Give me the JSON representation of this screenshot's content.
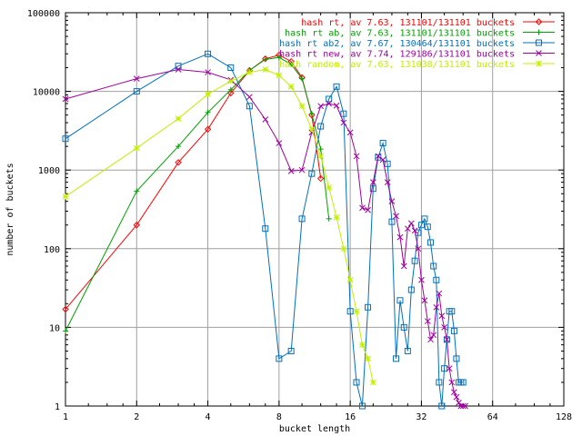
{
  "chart_data": {
    "type": "line",
    "xlabel": "bucket length",
    "ylabel": "number of buckets",
    "x_scale": "log2",
    "y_scale": "log10",
    "xlim": [
      1,
      128
    ],
    "ylim": [
      1,
      100000
    ],
    "x_ticks": [
      1,
      2,
      4,
      8,
      16,
      32,
      64,
      128
    ],
    "x_tick_labels": [
      "1",
      "2",
      "4",
      "8",
      "16",
      "32",
      "64",
      "128"
    ],
    "y_ticks": [
      1,
      10,
      100,
      1000,
      10000,
      100000
    ],
    "y_tick_labels": [
      "1",
      "10",
      "100",
      "1000",
      "10000",
      "100000"
    ],
    "grid": true,
    "legend_position": "top-right",
    "series": [
      {
        "name": "hash rt, av 7.63, 131101/131101 buckets",
        "color": "#ff0000",
        "marker": "diamond",
        "points": [
          [
            1,
            17
          ],
          [
            2,
            200
          ],
          [
            3,
            1250
          ],
          [
            4,
            3300
          ],
          [
            5,
            9500
          ],
          [
            6,
            18500
          ],
          [
            7,
            26000
          ],
          [
            8,
            29000
          ],
          [
            9,
            24000
          ],
          [
            10,
            15000
          ],
          [
            11,
            5000
          ],
          [
            12,
            780
          ]
        ]
      },
      {
        "name": "hash rt ab, av 7.63, 131101/131101 buckets",
        "color": "#00a000",
        "marker": "plus",
        "points": [
          [
            1,
            9
          ],
          [
            2,
            540
          ],
          [
            3,
            2000
          ],
          [
            4,
            5400
          ],
          [
            5,
            10500
          ],
          [
            6,
            18500
          ],
          [
            7,
            25500
          ],
          [
            8,
            27000
          ],
          [
            9,
            22000
          ],
          [
            10,
            14500
          ],
          [
            11,
            5200
          ],
          [
            12,
            1850
          ],
          [
            13,
            240
          ]
        ]
      },
      {
        "name": "hash rt ab2, av 7.67, 130464/131101 buckets",
        "color": "#0070c0",
        "marker": "square",
        "points": [
          [
            1,
            2500
          ],
          [
            2,
            10000
          ],
          [
            3,
            21000
          ],
          [
            4,
            30000
          ],
          [
            5,
            20000
          ],
          [
            6,
            6500
          ],
          [
            7,
            180
          ],
          [
            8,
            4
          ],
          [
            9,
            5
          ],
          [
            10,
            240
          ],
          [
            11,
            900
          ],
          [
            12,
            3600
          ],
          [
            13,
            8000
          ],
          [
            14,
            11500
          ],
          [
            15,
            5200
          ],
          [
            16,
            16
          ],
          [
            17,
            2
          ],
          [
            18,
            1
          ],
          [
            19,
            18
          ],
          [
            20,
            580
          ],
          [
            21,
            1450
          ],
          [
            22,
            2200
          ],
          [
            23,
            1200
          ],
          [
            24,
            220
          ],
          [
            25,
            4
          ],
          [
            26,
            22
          ],
          [
            27,
            10
          ],
          [
            28,
            5
          ],
          [
            29,
            30
          ],
          [
            30,
            70
          ],
          [
            31,
            160
          ],
          [
            32,
            200
          ],
          [
            33,
            240
          ],
          [
            34,
            190
          ],
          [
            35,
            120
          ],
          [
            36,
            60
          ],
          [
            37,
            40
          ],
          [
            38,
            2
          ],
          [
            39,
            1
          ],
          [
            40,
            3
          ],
          [
            41,
            7
          ],
          [
            42,
            16
          ],
          [
            43,
            16
          ],
          [
            44,
            9
          ],
          [
            45,
            4
          ],
          [
            46,
            2
          ],
          [
            47,
            2
          ],
          [
            48,
            2
          ]
        ]
      },
      {
        "name": "hash rt new, av 7.74, 129186/131101 buckets",
        "color": "#a000a0",
        "marker": "cross",
        "points": [
          [
            1,
            8000
          ],
          [
            2,
            14500
          ],
          [
            3,
            19000
          ],
          [
            4,
            17500
          ],
          [
            5,
            14000
          ],
          [
            6,
            8500
          ],
          [
            7,
            4400
          ],
          [
            8,
            2200
          ],
          [
            9,
            970
          ],
          [
            10,
            1000
          ],
          [
            11,
            3000
          ],
          [
            12,
            6500
          ],
          [
            13,
            7000
          ],
          [
            14,
            6600
          ],
          [
            15,
            4000
          ],
          [
            16,
            3000
          ],
          [
            17,
            1500
          ],
          [
            18,
            330
          ],
          [
            19,
            310
          ],
          [
            20,
            700
          ],
          [
            21,
            1500
          ],
          [
            22,
            1350
          ],
          [
            23,
            700
          ],
          [
            24,
            400
          ],
          [
            25,
            260
          ],
          [
            26,
            140
          ],
          [
            27,
            60
          ],
          [
            28,
            180
          ],
          [
            29,
            210
          ],
          [
            30,
            170
          ],
          [
            31,
            100
          ],
          [
            32,
            40
          ],
          [
            33,
            22
          ],
          [
            34,
            12
          ],
          [
            35,
            7
          ],
          [
            36,
            8
          ],
          [
            37,
            18
          ],
          [
            38,
            27
          ],
          [
            39,
            14
          ],
          [
            40,
            10
          ],
          [
            41,
            7
          ],
          [
            42,
            3
          ],
          [
            43,
            2
          ],
          [
            44,
            1.5
          ],
          [
            45,
            1.3
          ],
          [
            46,
            1.1
          ],
          [
            47,
            1
          ],
          [
            48,
            1
          ],
          [
            49,
            1
          ]
        ]
      },
      {
        "name": "hash random, av 7.63, 131038/131101 buckets",
        "color": "#c0f000",
        "marker": "star",
        "points": [
          [
            1,
            460
          ],
          [
            2,
            1900
          ],
          [
            3,
            4500
          ],
          [
            4,
            9200
          ],
          [
            5,
            13500
          ],
          [
            6,
            17500
          ],
          [
            7,
            19000
          ],
          [
            8,
            16000
          ],
          [
            9,
            11500
          ],
          [
            10,
            6500
          ],
          [
            11,
            3300
          ],
          [
            12,
            1500
          ],
          [
            13,
            600
          ],
          [
            14,
            250
          ],
          [
            15,
            100
          ],
          [
            16,
            40
          ],
          [
            17,
            16
          ],
          [
            18,
            6
          ],
          [
            19,
            4
          ],
          [
            20,
            2
          ]
        ]
      }
    ]
  }
}
